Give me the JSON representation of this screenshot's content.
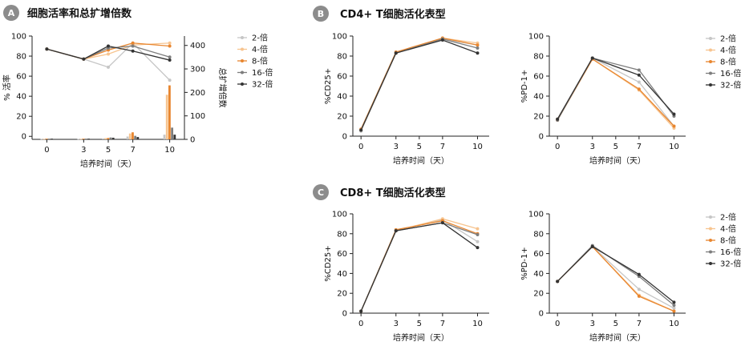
{
  "colors": {
    "2-倍": "#c6c6c6",
    "4-倍": "#f7c48f",
    "8-倍": "#e8862f",
    "16-倍": "#7d7d7d",
    "32-倍": "#333333",
    "badge": "#8c8c8c"
  },
  "legend_entries": [
    "2-倍",
    "4-倍",
    "8-倍",
    "16-倍",
    "32-倍"
  ],
  "panels": [
    {
      "letter": "A",
      "title": "细胞活率和总扩增倍数"
    },
    {
      "letter": "B",
      "title": "CD4+ T细胞活化表型"
    },
    {
      "letter": "C",
      "title": "CD8+ T细胞活化表型"
    }
  ],
  "chart_data": [
    {
      "id": "A",
      "type": "line+bar",
      "title": "细胞活率和总扩增倍数",
      "xlabel": "培养时间（天）",
      "ylabel": "% 活率",
      "y2label": "总扩增倍数",
      "x": [
        0,
        3,
        5,
        7,
        10
      ],
      "xlim": [
        -1.2,
        11.2
      ],
      "ylim": [
        -3,
        100
      ],
      "yticks": [
        0,
        20,
        40,
        60,
        80,
        100
      ],
      "y2lim": [
        0,
        440
      ],
      "y2ticks": [
        0,
        100,
        200,
        300,
        400
      ],
      "series": [
        {
          "name": "2-倍",
          "values": [
            87,
            77,
            69,
            93,
            56
          ],
          "bars": [
            2,
            2,
            4,
            12,
            20
          ]
        },
        {
          "name": "4-倍",
          "values": [
            87,
            77,
            82,
            91,
            93
          ],
          "bars": [
            2,
            2,
            5,
            25,
            190
          ]
        },
        {
          "name": "8-倍",
          "values": [
            87,
            77,
            86,
            93,
            90
          ],
          "bars": [
            3,
            3,
            6,
            30,
            230
          ]
        },
        {
          "name": "16-倍",
          "values": [
            87,
            77,
            88,
            90,
            79
          ],
          "bars": [
            3,
            3,
            8,
            15,
            50
          ]
        },
        {
          "name": "32-倍",
          "values": [
            87,
            77,
            90,
            85,
            76
          ],
          "bars": [
            3,
            3,
            7,
            10,
            20
          ]
        }
      ],
      "legend": "right"
    },
    {
      "id": "B1",
      "type": "line",
      "xlabel": "培养时间（天）",
      "ylabel": "%CD25+",
      "x": [
        0,
        3,
        7,
        10
      ],
      "xticks": [
        0,
        3,
        5,
        7,
        10
      ],
      "xlim": [
        -0.7,
        11
      ],
      "ylim": [
        0,
        100
      ],
      "yticks": [
        0,
        20,
        40,
        60,
        80,
        100
      ],
      "series": [
        {
          "name": "2-倍",
          "values": [
            5,
            83,
            97,
            91
          ]
        },
        {
          "name": "4-倍",
          "values": [
            6,
            83,
            98,
            93
          ]
        },
        {
          "name": "8-倍",
          "values": [
            7,
            84,
            98,
            91
          ]
        },
        {
          "name": "16-倍",
          "values": [
            6,
            83,
            97,
            88
          ]
        },
        {
          "name": "32-倍",
          "values": [
            6,
            83,
            96,
            83
          ]
        }
      ]
    },
    {
      "id": "B2",
      "type": "line",
      "xlabel": "培养时间（天）",
      "ylabel": "%PD-1+",
      "x": [
        0,
        3,
        7,
        10
      ],
      "xticks": [
        0,
        3,
        5,
        7,
        10
      ],
      "xlim": [
        -0.7,
        11
      ],
      "ylim": [
        0,
        100
      ],
      "yticks": [
        0,
        20,
        40,
        60,
        80,
        100
      ],
      "series": [
        {
          "name": "2-倍",
          "values": [
            17,
            78,
            54,
            10
          ]
        },
        {
          "name": "4-倍",
          "values": [
            17,
            77,
            46,
            8
          ]
        },
        {
          "name": "8-倍",
          "values": [
            16,
            77,
            47,
            10
          ]
        },
        {
          "name": "16-倍",
          "values": [
            16,
            78,
            66,
            20
          ]
        },
        {
          "name": "32-倍",
          "values": [
            17,
            78,
            61,
            22
          ]
        }
      ],
      "legend": "right"
    },
    {
      "id": "C1",
      "type": "line",
      "xlabel": "培养时间（天）",
      "ylabel": "%CD25+",
      "x": [
        0,
        3,
        7,
        10
      ],
      "xticks": [
        0,
        3,
        5,
        7,
        10
      ],
      "xlim": [
        -0.7,
        11
      ],
      "ylim": [
        0,
        100
      ],
      "yticks": [
        0,
        20,
        40,
        60,
        80,
        100
      ],
      "series": [
        {
          "name": "2-倍",
          "values": [
            2,
            83,
            94,
            72
          ]
        },
        {
          "name": "4-倍",
          "values": [
            2,
            83,
            95,
            85
          ]
        },
        {
          "name": "8-倍",
          "values": [
            2,
            84,
            93,
            80
          ]
        },
        {
          "name": "16-倍",
          "values": [
            2,
            83,
            91,
            79
          ]
        },
        {
          "name": "32-倍",
          "values": [
            2,
            83,
            91,
            66
          ]
        }
      ]
    },
    {
      "id": "C2",
      "type": "line",
      "xlabel": "培养时间（天）",
      "ylabel": "%PD-1+",
      "x": [
        0,
        3,
        7,
        10
      ],
      "xticks": [
        0,
        3,
        5,
        7,
        10
      ],
      "xlim": [
        -0.7,
        11
      ],
      "ylim": [
        0,
        100
      ],
      "yticks": [
        0,
        20,
        40,
        60,
        80,
        100
      ],
      "series": [
        {
          "name": "2-倍",
          "values": [
            32,
            67,
            24,
            5
          ]
        },
        {
          "name": "4-倍",
          "values": [
            32,
            67,
            18,
            2
          ]
        },
        {
          "name": "8-倍",
          "values": [
            32,
            67,
            17,
            2
          ]
        },
        {
          "name": "16-倍",
          "values": [
            32,
            68,
            37,
            8
          ]
        },
        {
          "name": "32-倍",
          "values": [
            32,
            67,
            39,
            11
          ]
        }
      ],
      "legend": "right"
    }
  ]
}
